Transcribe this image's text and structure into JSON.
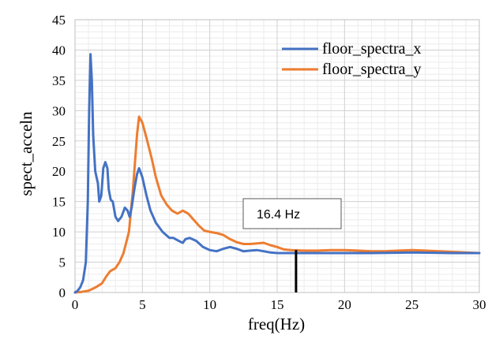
{
  "chart_data": {
    "type": "line",
    "title": "",
    "xlabel": "freq(Hz)",
    "ylabel": "spect_acceln",
    "xlim": [
      0,
      30
    ],
    "ylim": [
      0,
      45
    ],
    "x_ticks": [
      0,
      5,
      10,
      15,
      20,
      25,
      30
    ],
    "y_ticks": [
      0,
      5,
      10,
      15,
      20,
      25,
      30,
      35,
      40,
      45
    ],
    "grid": true,
    "legend_position": "top-right",
    "series": [
      {
        "name": "floor_spectra_x",
        "color": "#4472C4",
        "points": [
          [
            0.0,
            0.0
          ],
          [
            0.2,
            0.3
          ],
          [
            0.4,
            0.9
          ],
          [
            0.6,
            2.0
          ],
          [
            0.8,
            5.0
          ],
          [
            0.95,
            15.0
          ],
          [
            1.05,
            30.0
          ],
          [
            1.15,
            39.3
          ],
          [
            1.25,
            35.0
          ],
          [
            1.35,
            26.0
          ],
          [
            1.5,
            20.0
          ],
          [
            1.6,
            19.0
          ],
          [
            1.7,
            18.0
          ],
          [
            1.8,
            15.0
          ],
          [
            1.95,
            16.0
          ],
          [
            2.1,
            20.5
          ],
          [
            2.25,
            21.5
          ],
          [
            2.4,
            20.5
          ],
          [
            2.5,
            17.0
          ],
          [
            2.65,
            15.3
          ],
          [
            2.8,
            15.0
          ],
          [
            3.0,
            12.5
          ],
          [
            3.2,
            11.8
          ],
          [
            3.45,
            12.5
          ],
          [
            3.7,
            14.0
          ],
          [
            3.9,
            13.5
          ],
          [
            4.05,
            12.5
          ],
          [
            4.2,
            14.0
          ],
          [
            4.4,
            17.0
          ],
          [
            4.6,
            19.5
          ],
          [
            4.75,
            20.5
          ],
          [
            5.0,
            19.0
          ],
          [
            5.3,
            16.0
          ],
          [
            5.6,
            13.5
          ],
          [
            6.0,
            11.5
          ],
          [
            6.5,
            10.0
          ],
          [
            7.0,
            9.0
          ],
          [
            7.3,
            9.0
          ],
          [
            7.7,
            8.5
          ],
          [
            8.0,
            8.2
          ],
          [
            8.2,
            8.8
          ],
          [
            8.5,
            9.0
          ],
          [
            9.0,
            8.5
          ],
          [
            9.5,
            7.5
          ],
          [
            10.0,
            7.0
          ],
          [
            10.5,
            6.8
          ],
          [
            11.0,
            7.2
          ],
          [
            11.5,
            7.5
          ],
          [
            12.0,
            7.2
          ],
          [
            12.5,
            6.8
          ],
          [
            13.0,
            6.9
          ],
          [
            13.5,
            7.0
          ],
          [
            14.0,
            6.8
          ],
          [
            14.5,
            6.6
          ],
          [
            15.0,
            6.5
          ],
          [
            16.0,
            6.5
          ],
          [
            17.0,
            6.5
          ],
          [
            18.0,
            6.5
          ],
          [
            20.0,
            6.5
          ],
          [
            22.0,
            6.5
          ],
          [
            25.0,
            6.6
          ],
          [
            28.0,
            6.5
          ],
          [
            30.0,
            6.5
          ]
        ]
      },
      {
        "name": "floor_spectra_y",
        "color": "#ED7D31",
        "points": [
          [
            0.0,
            0.0
          ],
          [
            0.5,
            0.1
          ],
          [
            1.0,
            0.3
          ],
          [
            1.5,
            0.8
          ],
          [
            2.0,
            1.5
          ],
          [
            2.3,
            2.6
          ],
          [
            2.6,
            3.5
          ],
          [
            3.0,
            4.0
          ],
          [
            3.3,
            5.0
          ],
          [
            3.6,
            6.5
          ],
          [
            4.0,
            10.0
          ],
          [
            4.3,
            17.0
          ],
          [
            4.6,
            26.0
          ],
          [
            4.75,
            29.0
          ],
          [
            5.0,
            28.0
          ],
          [
            5.3,
            25.5
          ],
          [
            5.7,
            22.0
          ],
          [
            6.0,
            19.0
          ],
          [
            6.4,
            16.0
          ],
          [
            6.8,
            14.5
          ],
          [
            7.2,
            13.5
          ],
          [
            7.6,
            13.0
          ],
          [
            8.0,
            13.5
          ],
          [
            8.4,
            13.0
          ],
          [
            8.8,
            12.0
          ],
          [
            9.2,
            11.0
          ],
          [
            9.6,
            10.2
          ],
          [
            10.0,
            10.0
          ],
          [
            10.5,
            9.8
          ],
          [
            11.0,
            9.5
          ],
          [
            11.5,
            8.8
          ],
          [
            12.0,
            8.3
          ],
          [
            12.5,
            8.0
          ],
          [
            13.0,
            8.0
          ],
          [
            13.5,
            8.1
          ],
          [
            14.0,
            8.2
          ],
          [
            14.5,
            7.8
          ],
          [
            15.0,
            7.5
          ],
          [
            15.5,
            7.1
          ],
          [
            16.0,
            7.0
          ],
          [
            17.0,
            6.9
          ],
          [
            18.0,
            6.9
          ],
          [
            19.0,
            7.0
          ],
          [
            20.0,
            7.0
          ],
          [
            21.0,
            6.9
          ],
          [
            22.0,
            6.8
          ],
          [
            23.0,
            6.8
          ],
          [
            24.0,
            6.9
          ],
          [
            25.0,
            7.0
          ],
          [
            26.0,
            6.9
          ],
          [
            27.0,
            6.8
          ],
          [
            28.0,
            6.7
          ],
          [
            29.0,
            6.6
          ],
          [
            30.0,
            6.5
          ]
        ]
      }
    ],
    "annotation": {
      "label": "16.4 Hz",
      "x": 16.4,
      "y_from": 0,
      "y_to": 7.0
    }
  }
}
